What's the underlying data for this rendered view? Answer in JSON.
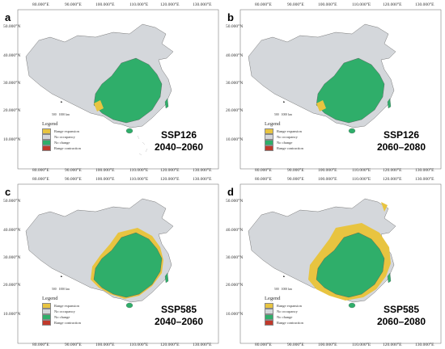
{
  "legend": {
    "title": "Legend",
    "items": [
      {
        "label": "Range expansion",
        "color": "#e8c440"
      },
      {
        "label": "No occupancy",
        "color": "#d4d7db"
      },
      {
        "label": "No change",
        "color": "#2fae6a"
      },
      {
        "label": "Range contraction",
        "color": "#c0392b"
      }
    ]
  },
  "axes": {
    "lat_labels": [
      "50.000°N",
      "40.000°N",
      "30.000°N",
      "20.000°N",
      "10.000°N"
    ],
    "lon_labels": [
      "80.000°E",
      "90.000°E",
      "100.000°E",
      "110.000°E",
      "120.000°E",
      "130.000°E"
    ]
  },
  "scale": {
    "label0": "500",
    "label1": "1000 km",
    "north": "N"
  },
  "panels": [
    {
      "id": "a",
      "scenario": "SSP126",
      "period": "2040–2060"
    },
    {
      "id": "b",
      "scenario": "SSP126",
      "period": "2060–2080"
    },
    {
      "id": "c",
      "scenario": "SSP585",
      "period": "2040–2060"
    },
    {
      "id": "d",
      "scenario": "SSP585",
      "period": "2060–2080"
    }
  ]
}
